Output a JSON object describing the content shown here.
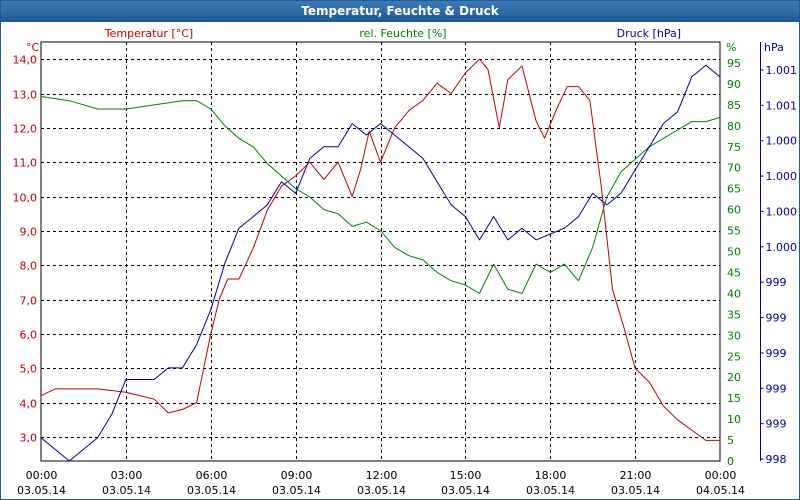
{
  "window": {
    "title": "Temperatur, Feuchte & Druck"
  },
  "colors": {
    "temperature": "#c00000",
    "humidity": "#008000",
    "pressure": "#0000a0",
    "grid": "#000000",
    "text": "#000000"
  },
  "chart_data": {
    "type": "line",
    "title": "Temperatur, Feuchte & Druck",
    "x_ticks": [
      {
        "time": "00:00",
        "date": "03.05.14"
      },
      {
        "time": "03:00",
        "date": "03.05.14"
      },
      {
        "time": "06:00",
        "date": "03.05.14"
      },
      {
        "time": "09:00",
        "date": "03.05.14"
      },
      {
        "time": "12:00",
        "date": "03.05.14"
      },
      {
        "time": "15:00",
        "date": "03.05.14"
      },
      {
        "time": "18:00",
        "date": "03.05.14"
      },
      {
        "time": "21:00",
        "date": "03.05.14"
      },
      {
        "time": "00:00",
        "date": "04.05.14"
      }
    ],
    "x_range_hours": [
      0,
      24
    ],
    "axes": {
      "left": {
        "unit": "°C",
        "legend": "Temperatur [°C]",
        "range": [
          2.3,
          14.5
        ],
        "ticks": [
          "3,0",
          "4,0",
          "5,0",
          "6,0",
          "7,0",
          "8,0",
          "9,0",
          "10,0",
          "11,0",
          "12,0",
          "13,0",
          "14,0"
        ]
      },
      "right_inner": {
        "unit": "%",
        "legend": "rel. Feuchte [%]",
        "range": [
          0,
          100
        ],
        "ticks": [
          "0",
          "5",
          "10",
          "15",
          "20",
          "25",
          "30",
          "35",
          "40",
          "45",
          "50",
          "55",
          "60",
          "65",
          "70",
          "75",
          "80",
          "85",
          "90",
          "95"
        ]
      },
      "right_outer": {
        "unit": "hPa",
        "legend": "Druck [hPa]",
        "range": [
          998.0,
          1001.6
        ],
        "ticks": [
          "998",
          "999",
          "999",
          "999",
          "999",
          "999",
          "1.000",
          "1.000",
          "1.000",
          "1.000",
          "1.001",
          "1.001"
        ]
      }
    },
    "series": [
      {
        "name": "Temperatur",
        "axis": "left",
        "unit": "°C",
        "x": [
          0,
          0.5,
          1,
          2,
          3,
          4,
          4.5,
          5,
          5.5,
          6,
          6.3,
          6.6,
          7,
          7.5,
          8,
          8.5,
          9,
          9.5,
          10,
          10.5,
          11,
          11.3,
          11.6,
          12,
          12.5,
          13,
          13.5,
          14,
          14.5,
          15,
          15.5,
          15.8,
          16.2,
          16.5,
          17,
          17.5,
          17.8,
          18.2,
          18.6,
          19,
          19.4,
          19.8,
          20.2,
          20.6,
          21,
          21.5,
          22,
          22.5,
          23,
          23.5,
          24
        ],
        "values": [
          4.2,
          4.4,
          4.4,
          4.4,
          4.3,
          4.1,
          3.7,
          3.8,
          4.0,
          6.0,
          7.0,
          7.6,
          7.6,
          8.5,
          9.6,
          10.3,
          10.6,
          11.0,
          10.5,
          11.0,
          10.0,
          10.8,
          11.9,
          11.0,
          12.0,
          12.5,
          12.8,
          13.3,
          13.0,
          13.6,
          14.0,
          13.7,
          12.0,
          13.4,
          13.8,
          12.2,
          11.7,
          12.5,
          13.2,
          13.2,
          12.8,
          10.3,
          7.3,
          6.2,
          5.0,
          4.6,
          3.9,
          3.5,
          3.2,
          2.9,
          2.9
        ]
      },
      {
        "name": "rel. Feuchte",
        "axis": "right_inner",
        "unit": "%",
        "x": [
          0,
          1,
          2,
          3,
          4,
          5,
          5.5,
          6,
          6.5,
          7,
          7.5,
          8,
          8.5,
          9,
          9.5,
          10,
          10.5,
          11,
          11.5,
          12,
          12.5,
          13,
          13.5,
          14,
          14.5,
          15,
          15.5,
          16,
          16.5,
          17,
          17.5,
          18,
          18.5,
          19,
          19.5,
          20,
          20.5,
          21,
          21.5,
          22,
          22.5,
          23,
          23.5,
          24
        ],
        "values": [
          87,
          86,
          84,
          84,
          85,
          86,
          86,
          84,
          80,
          77,
          75,
          71,
          68,
          65,
          63,
          60,
          59,
          56,
          57,
          55,
          51,
          49,
          48,
          45,
          43,
          42,
          40,
          47,
          41,
          40,
          47,
          45,
          47,
          43,
          51,
          63,
          69,
          72,
          75,
          77,
          79,
          81,
          81,
          82
        ]
      },
      {
        "name": "Druck",
        "axis": "right_outer",
        "unit": "hPa",
        "x": [
          0,
          0.5,
          1,
          1.5,
          2,
          2.5,
          3,
          3.5,
          4,
          4.5,
          5,
          5.5,
          6,
          6.5,
          7,
          7.5,
          8,
          8.5,
          9,
          9.5,
          10,
          10.5,
          11,
          11.5,
          12,
          12.5,
          13,
          13.5,
          14,
          14.5,
          15,
          15.5,
          16,
          16.5,
          17,
          17.5,
          18,
          18.5,
          19,
          19.5,
          20,
          20.5,
          21,
          21.5,
          22,
          22.5,
          23,
          23.5,
          24
        ],
        "values": [
          998.2,
          998.1,
          998.0,
          998.1,
          998.2,
          998.4,
          998.7,
          998.7,
          998.7,
          998.8,
          998.8,
          999.0,
          999.3,
          999.7,
          1000.0,
          1000.1,
          1000.2,
          1000.4,
          1000.3,
          1000.6,
          1000.7,
          1000.7,
          1000.9,
          1000.8,
          1000.9,
          1000.8,
          1000.7,
          1000.6,
          1000.4,
          1000.2,
          1000.1,
          999.9,
          1000.1,
          999.9,
          1000.0,
          999.9,
          999.95,
          1000.0,
          1000.1,
          1000.3,
          1000.2,
          1000.3,
          1000.5,
          1000.7,
          1000.9,
          1001.0,
          1001.3,
          1001.4,
          1001.3
        ]
      }
    ]
  }
}
